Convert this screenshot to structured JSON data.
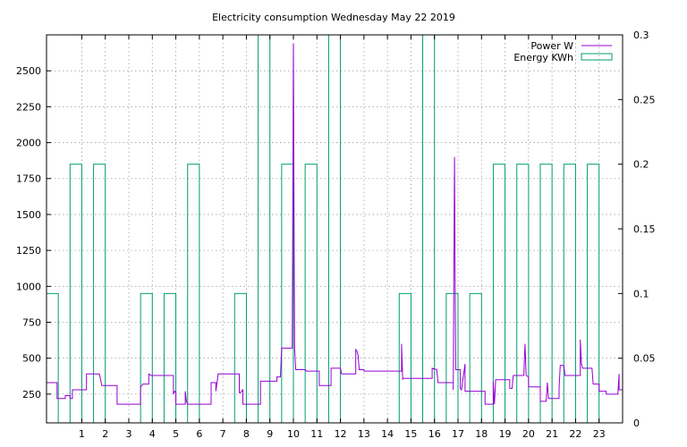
{
  "chart_data": {
    "type": "line",
    "title": "Electricity consumption Wednesday May 22 2019",
    "xlim": [
      -0.5,
      24
    ],
    "ylim": [
      50,
      2750
    ],
    "y2lim": [
      0,
      0.3
    ],
    "x_ticks": [
      1,
      2,
      3,
      4,
      5,
      6,
      7,
      8,
      9,
      10,
      11,
      12,
      13,
      14,
      15,
      16,
      17,
      18,
      19,
      20,
      21,
      22,
      23
    ],
    "y_ticks": [
      250,
      500,
      750,
      1000,
      1250,
      1500,
      1750,
      2000,
      2250,
      2500
    ],
    "y2_ticks": [
      0,
      0.05,
      0.1,
      0.15,
      0.2,
      0.25,
      0.3
    ],
    "grid": true,
    "legend_position": "top-right",
    "series": [
      {
        "name": "Power W",
        "axis": "y",
        "color": "#9400d3",
        "points": [
          [
            -0.5,
            330
          ],
          [
            -0.05,
            330
          ],
          [
            -0.05,
            220
          ],
          [
            0.3,
            220
          ],
          [
            0.3,
            240
          ],
          [
            0.5,
            240
          ],
          [
            0.5,
            220
          ],
          [
            0.6,
            220
          ],
          [
            0.6,
            280
          ],
          [
            1.2,
            280
          ],
          [
            1.2,
            390
          ],
          [
            1.75,
            390
          ],
          [
            1.85,
            310
          ],
          [
            2.5,
            310
          ],
          [
            2.5,
            180
          ],
          [
            3.5,
            180
          ],
          [
            3.5,
            300
          ],
          [
            3.6,
            320
          ],
          [
            3.85,
            320
          ],
          [
            3.85,
            390
          ],
          [
            3.95,
            380
          ],
          [
            4.9,
            380
          ],
          [
            4.9,
            250
          ],
          [
            4.95,
            270
          ],
          [
            5,
            260
          ],
          [
            5,
            180
          ],
          [
            5.4,
            180
          ],
          [
            5.4,
            270
          ],
          [
            5.45,
            200
          ],
          [
            5.5,
            180
          ],
          [
            6.5,
            180
          ],
          [
            6.5,
            330
          ],
          [
            6.7,
            330
          ],
          [
            6.7,
            270
          ],
          [
            6.75,
            330
          ],
          [
            6.8,
            390
          ],
          [
            7.7,
            390
          ],
          [
            7.7,
            260
          ],
          [
            7.75,
            260
          ],
          [
            7.85,
            280
          ],
          [
            7.85,
            180
          ],
          [
            8.6,
            180
          ],
          [
            8.6,
            340
          ],
          [
            9.3,
            340
          ],
          [
            9.3,
            370
          ],
          [
            9.45,
            370
          ],
          [
            9.5,
            570
          ],
          [
            9.95,
            570
          ],
          [
            10,
            2690
          ],
          [
            10.05,
            570
          ],
          [
            10.1,
            420
          ],
          [
            10.5,
            420
          ],
          [
            10.55,
            410
          ],
          [
            11.1,
            410
          ],
          [
            11.1,
            310
          ],
          [
            11.6,
            310
          ],
          [
            11.6,
            430
          ],
          [
            12,
            430
          ],
          [
            12.05,
            390
          ],
          [
            12.65,
            390
          ],
          [
            12.65,
            560
          ],
          [
            12.7,
            550
          ],
          [
            12.75,
            520
          ],
          [
            12.8,
            420
          ],
          [
            13,
            420
          ],
          [
            13,
            410
          ],
          [
            14.6,
            410
          ],
          [
            14.6,
            600
          ],
          [
            14.65,
            350
          ],
          [
            14.65,
            360
          ],
          [
            15.9,
            360
          ],
          [
            15.9,
            430
          ],
          [
            16.1,
            420
          ],
          [
            16.15,
            330
          ],
          [
            16.8,
            330
          ],
          [
            16.8,
            280
          ],
          [
            16.85,
            1900
          ],
          [
            16.9,
            420
          ],
          [
            17.1,
            420
          ],
          [
            17.1,
            290
          ],
          [
            17.15,
            280
          ],
          [
            17.3,
            460
          ],
          [
            17.3,
            270
          ],
          [
            18.15,
            270
          ],
          [
            18.15,
            180
          ],
          [
            18.5,
            180
          ],
          [
            18.5,
            340
          ],
          [
            18.55,
            180
          ],
          [
            18.6,
            350
          ],
          [
            19.2,
            350
          ],
          [
            19.2,
            290
          ],
          [
            19.3,
            290
          ],
          [
            19.35,
            380
          ],
          [
            19.8,
            380
          ],
          [
            19.85,
            600
          ],
          [
            19.9,
            380
          ],
          [
            20,
            370
          ],
          [
            20,
            300
          ],
          [
            20.5,
            300
          ],
          [
            20.5,
            200
          ],
          [
            20.7,
            200
          ],
          [
            20.75,
            200
          ],
          [
            20.8,
            330
          ],
          [
            20.85,
            220
          ],
          [
            21.3,
            220
          ],
          [
            21.3,
            290
          ],
          [
            21.35,
            450
          ],
          [
            21.5,
            450
          ],
          [
            21.55,
            380
          ],
          [
            22.2,
            380
          ],
          [
            22.2,
            630
          ],
          [
            22.25,
            460
          ],
          [
            22.3,
            430
          ],
          [
            22.7,
            430
          ],
          [
            22.75,
            320
          ],
          [
            23,
            320
          ],
          [
            23,
            270
          ],
          [
            23.3,
            270
          ],
          [
            23.3,
            250
          ],
          [
            23.8,
            250
          ],
          [
            23.85,
            390
          ],
          [
            23.85,
            280
          ],
          [
            24,
            280
          ]
        ]
      },
      {
        "name": "Energy KWh",
        "axis": "y2",
        "color": "#009e73",
        "bars": [
          [
            0,
            0.1
          ],
          [
            1,
            0.2
          ],
          [
            2,
            0.2
          ],
          [
            3,
            0
          ],
          [
            4,
            0.1
          ],
          [
            5,
            0.1
          ],
          [
            6,
            0.2
          ],
          [
            7,
            0
          ],
          [
            8,
            0.1
          ],
          [
            9,
            0.3
          ],
          [
            10,
            0.2
          ],
          [
            11,
            0.2
          ],
          [
            12,
            0.3
          ],
          [
            13,
            0
          ],
          [
            14,
            0
          ],
          [
            15,
            0.1
          ],
          [
            16,
            0.3
          ],
          [
            17,
            0.1
          ],
          [
            18,
            0.1
          ],
          [
            19,
            0.2
          ],
          [
            20,
            0.2
          ],
          [
            21,
            0.2
          ],
          [
            22,
            0.2
          ],
          [
            23,
            0.2
          ]
        ]
      }
    ]
  }
}
